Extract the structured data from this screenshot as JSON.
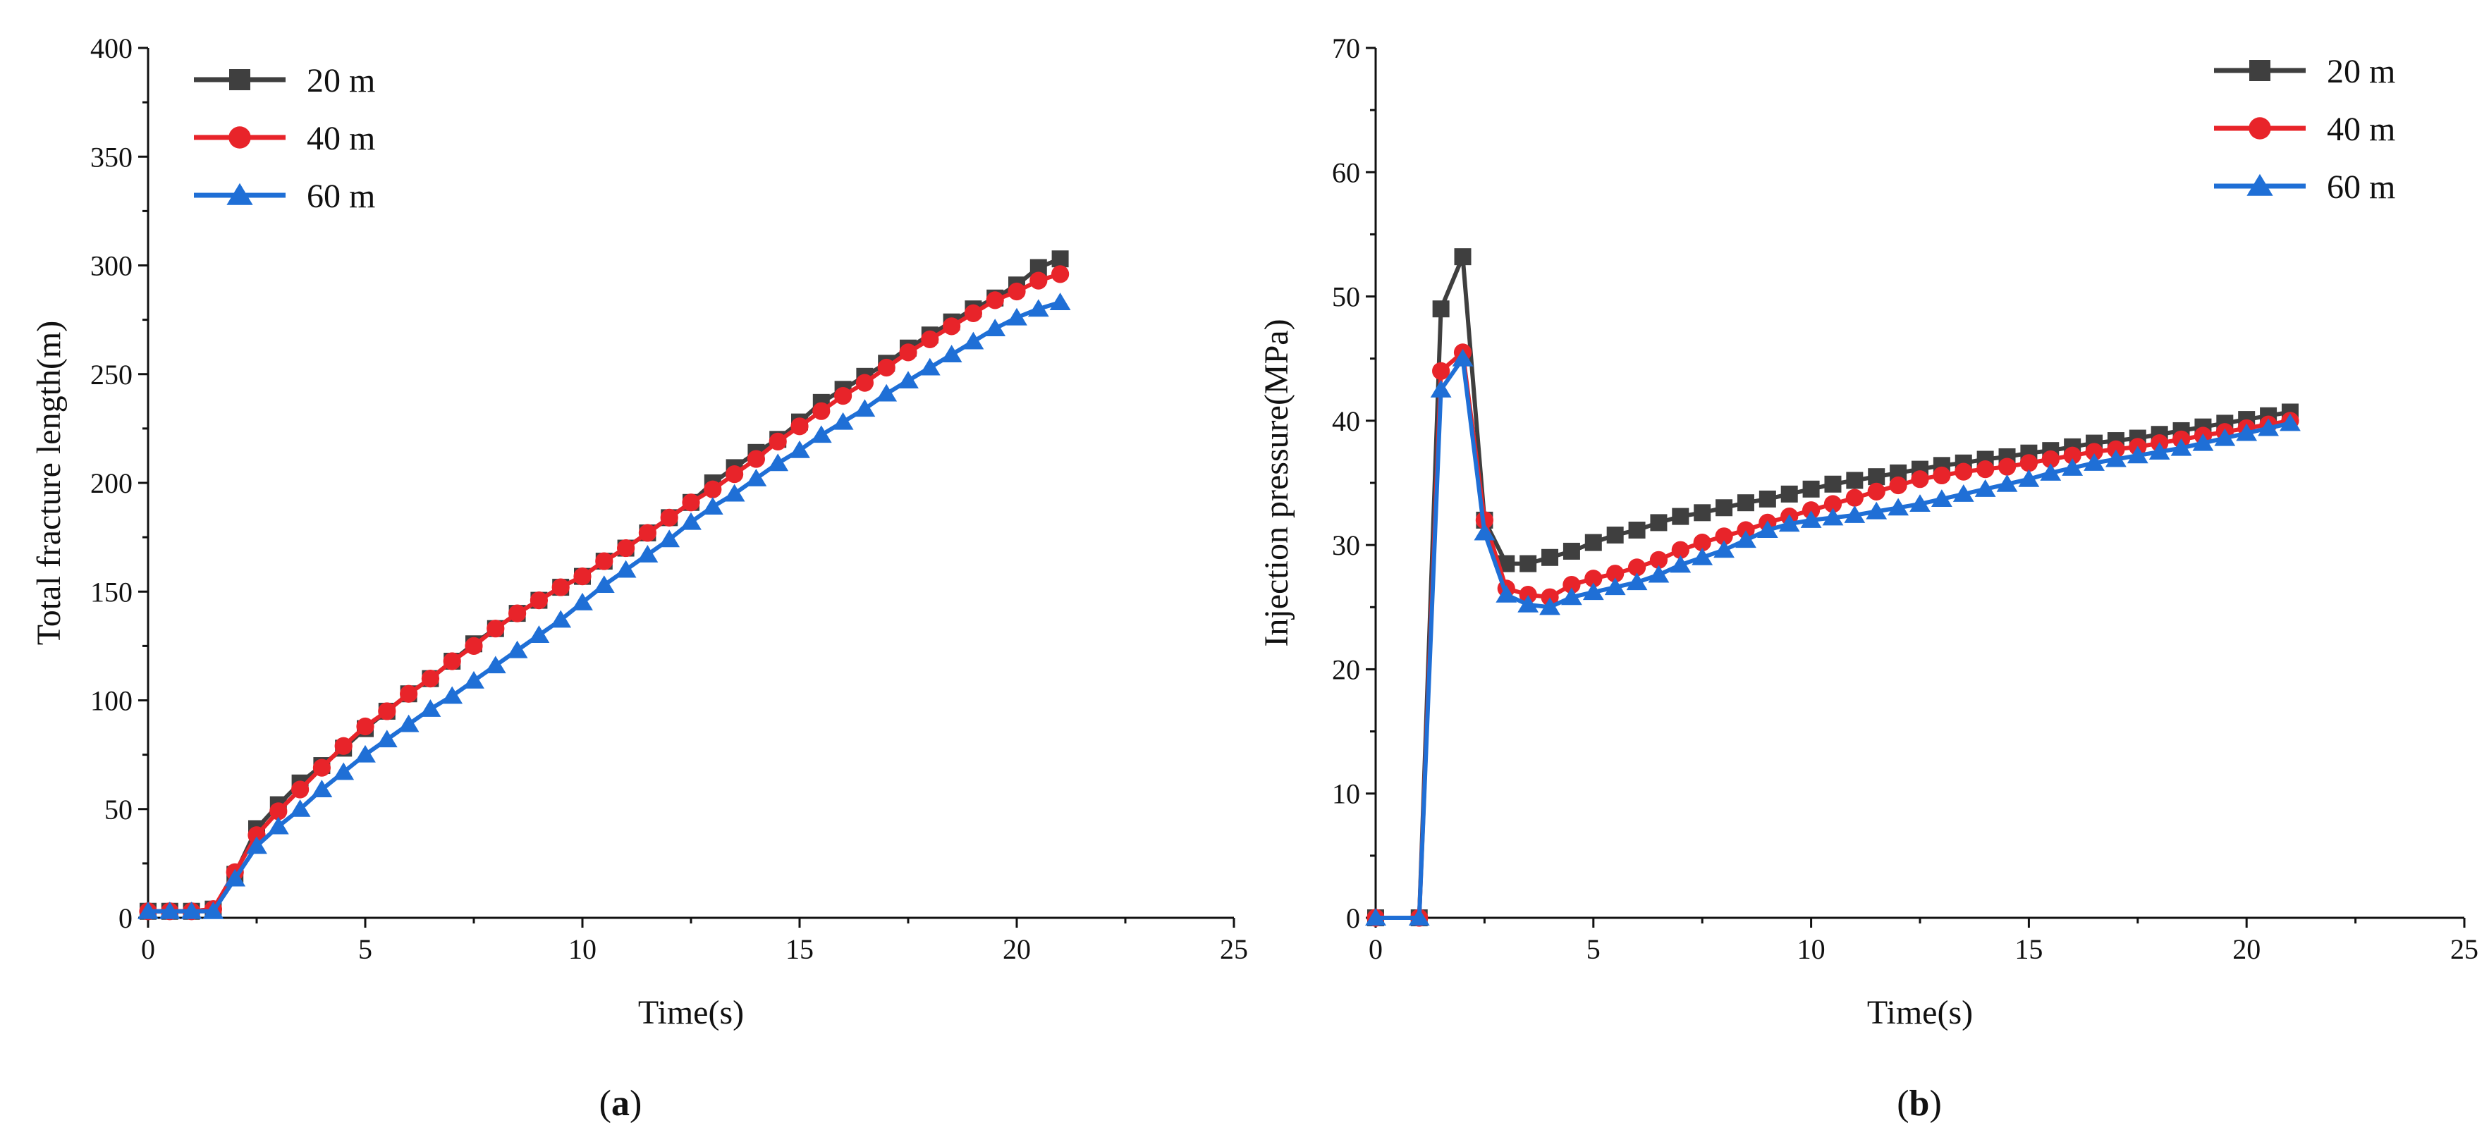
{
  "chart_data": [
    {
      "type": "line",
      "panel_label": "a",
      "xlabel": "Time(s)",
      "ylabel": "Total fracture length(m)",
      "xlim": [
        0,
        25
      ],
      "ylim": [
        0,
        400
      ],
      "xticks": [
        0,
        5,
        10,
        15,
        20,
        25
      ],
      "yticks": [
        0,
        50,
        100,
        150,
        200,
        250,
        300,
        350,
        400
      ],
      "legend_position": "top-left",
      "grid": false,
      "series": [
        {
          "name": "20 m",
          "color": "#3f3f3f",
          "marker": "square",
          "x": [
            0,
            0.5,
            1,
            1.5,
            2,
            2.5,
            3,
            3.5,
            4,
            4.5,
            5,
            5.5,
            6,
            6.5,
            7,
            7.5,
            8,
            8.5,
            9,
            9.5,
            10,
            10.5,
            11,
            11.5,
            12,
            12.5,
            13,
            13.5,
            14,
            14.5,
            15,
            15.5,
            16,
            16.5,
            17,
            17.5,
            18,
            18.5,
            19,
            19.5,
            20,
            20.5,
            21
          ],
          "values": [
            3,
            3,
            3,
            4,
            20,
            41,
            52,
            62,
            70,
            78,
            87,
            95,
            103,
            110,
            118,
            126,
            133,
            140,
            146,
            152,
            157,
            164,
            170,
            177,
            184,
            191,
            200,
            207,
            214,
            220,
            228,
            237,
            243,
            249,
            255,
            262,
            268,
            274,
            280,
            285,
            291,
            299,
            303
          ]
        },
        {
          "name": "40 m",
          "color": "#e8242a",
          "marker": "circle",
          "x": [
            0,
            0.5,
            1,
            1.5,
            2,
            2.5,
            3,
            3.5,
            4,
            4.5,
            5,
            5.5,
            6,
            6.5,
            7,
            7.5,
            8,
            8.5,
            9,
            9.5,
            10,
            10.5,
            11,
            11.5,
            12,
            12.5,
            13,
            13.5,
            14,
            14.5,
            15,
            15.5,
            16,
            16.5,
            17,
            17.5,
            18,
            18.5,
            19,
            19.5,
            20,
            20.5,
            21
          ],
          "values": [
            3,
            3,
            3,
            4,
            21,
            38,
            49,
            59,
            69,
            79,
            88,
            95,
            103,
            110,
            118,
            125,
            133,
            140,
            146,
            152,
            157,
            164,
            170,
            177,
            184,
            191,
            197,
            204,
            211,
            219,
            226,
            233,
            240,
            246,
            253,
            260,
            266,
            272,
            278,
            284,
            288,
            293,
            296
          ]
        },
        {
          "name": "60 m",
          "color": "#1f6fd6",
          "marker": "triangle",
          "x": [
            0,
            0.5,
            1,
            1.5,
            2,
            2.5,
            3,
            3.5,
            4,
            4.5,
            5,
            5.5,
            6,
            6.5,
            7,
            7.5,
            8,
            8.5,
            9,
            9.5,
            10,
            10.5,
            11,
            11.5,
            12,
            12.5,
            13,
            13.5,
            14,
            14.5,
            15,
            15.5,
            16,
            16.5,
            17,
            17.5,
            18,
            18.5,
            19,
            19.5,
            20,
            20.5,
            21
          ],
          "values": [
            3,
            3,
            3,
            3,
            18,
            33,
            42,
            50,
            59,
            67,
            75,
            82,
            89,
            96,
            102,
            109,
            116,
            123,
            130,
            137,
            145,
            153,
            160,
            167,
            174,
            182,
            189,
            195,
            202,
            209,
            215,
            222,
            228,
            234,
            241,
            247,
            253,
            259,
            265,
            271,
            276,
            280,
            283
          ]
        }
      ]
    },
    {
      "type": "line",
      "panel_label": "b",
      "xlabel": "Time(s)",
      "ylabel": "Injection pressure(MPa)",
      "xlim": [
        0,
        25
      ],
      "ylim": [
        0,
        70
      ],
      "xticks": [
        0,
        5,
        10,
        15,
        20,
        25
      ],
      "yticks": [
        0,
        10,
        20,
        30,
        40,
        50,
        60,
        70
      ],
      "legend_position": "top-right",
      "grid": false,
      "series": [
        {
          "name": "20 m",
          "color": "#3f3f3f",
          "marker": "square",
          "x": [
            0,
            1,
            1.5,
            2,
            2.5,
            3,
            3.5,
            4,
            4.5,
            5,
            5.5,
            6,
            6.5,
            7,
            7.5,
            8,
            8.5,
            9,
            9.5,
            10,
            10.5,
            11,
            11.5,
            12,
            12.5,
            13,
            13.5,
            14,
            14.5,
            15,
            15.5,
            16,
            16.5,
            17,
            17.5,
            18,
            18.5,
            19,
            19.5,
            20,
            20.5,
            21
          ],
          "values": [
            0,
            0,
            49,
            53.2,
            32,
            28.5,
            28.5,
            29,
            29.5,
            30.2,
            30.8,
            31.2,
            31.8,
            32.3,
            32.6,
            33,
            33.4,
            33.7,
            34.1,
            34.5,
            34.9,
            35.2,
            35.5,
            35.8,
            36.1,
            36.4,
            36.6,
            36.9,
            37.1,
            37.4,
            37.6,
            37.9,
            38.2,
            38.4,
            38.6,
            38.9,
            39.2,
            39.5,
            39.8,
            40.1,
            40.4,
            40.7
          ]
        },
        {
          "name": "40 m",
          "color": "#e8242a",
          "marker": "circle",
          "x": [
            0,
            1,
            1.5,
            2,
            2.5,
            3,
            3.5,
            4,
            4.5,
            5,
            5.5,
            6,
            6.5,
            7,
            7.5,
            8,
            8.5,
            9,
            9.5,
            10,
            10.5,
            11,
            11.5,
            12,
            12.5,
            13,
            13.5,
            14,
            14.5,
            15,
            15.5,
            16,
            16.5,
            17,
            17.5,
            18,
            18.5,
            19,
            19.5,
            20,
            20.5,
            21
          ],
          "values": [
            0,
            0,
            44,
            45.5,
            32,
            26.5,
            26,
            25.8,
            26.8,
            27.3,
            27.7,
            28.2,
            28.8,
            29.6,
            30.2,
            30.7,
            31.2,
            31.8,
            32.3,
            32.8,
            33.3,
            33.8,
            34.3,
            34.8,
            35.3,
            35.6,
            35.9,
            36.1,
            36.3,
            36.6,
            36.9,
            37.2,
            37.5,
            37.7,
            37.9,
            38.2,
            38.5,
            38.8,
            39.1,
            39.4,
            39.7,
            40
          ]
        },
        {
          "name": "60 m",
          "color": "#1f6fd6",
          "marker": "triangle",
          "x": [
            0,
            1,
            1.5,
            2,
            2.5,
            3,
            3.5,
            4,
            4.5,
            5,
            5.5,
            6,
            6.5,
            7,
            7.5,
            8,
            8.5,
            9,
            9.5,
            10,
            10.5,
            11,
            11.5,
            12,
            12.5,
            13,
            13.5,
            14,
            14.5,
            15,
            15.5,
            16,
            16.5,
            17,
            17.5,
            18,
            18.5,
            19,
            19.5,
            20,
            20.5,
            21
          ],
          "values": [
            0,
            0,
            42.5,
            45,
            31,
            26,
            25.2,
            25,
            25.8,
            26.2,
            26.6,
            27,
            27.6,
            28.4,
            29,
            29.6,
            30.4,
            31.2,
            31.7,
            32,
            32.2,
            32.4,
            32.7,
            33,
            33.3,
            33.7,
            34.1,
            34.5,
            34.9,
            35.3,
            35.8,
            36.2,
            36.6,
            36.9,
            37.2,
            37.5,
            37.8,
            38.2,
            38.6,
            39,
            39.4,
            39.8
          ]
        }
      ]
    }
  ]
}
